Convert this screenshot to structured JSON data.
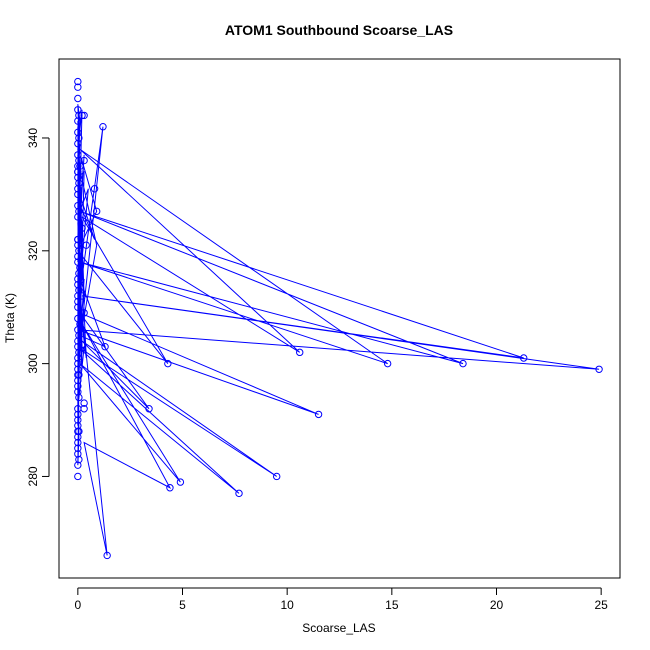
{
  "chart_data": {
    "type": "line",
    "title": "ATOM1 Southbound Scoarse_LAS",
    "xlabel": "Scoarse_LAS",
    "ylabel": "Theta (K)",
    "xlim": [
      -0.9,
      25.9
    ],
    "ylim": [
      262,
      354
    ],
    "xticks": [
      0,
      5,
      10,
      15,
      20,
      25
    ],
    "yticks": [
      280,
      300,
      320,
      340
    ],
    "grid": false,
    "legend": "none",
    "series_color": "#0000ff",
    "series": [
      {
        "x": [
          0.0,
          0.3,
          0.0,
          0.2,
          0.0,
          0.1,
          0.0,
          0.8,
          0.0,
          0.05,
          0.0,
          0.2,
          0.0,
          1.2,
          0.0,
          0.15,
          0.0,
          0.5,
          0.0,
          0.05,
          0.0,
          0.3,
          0.0,
          0.1,
          0.0,
          0.05,
          0.0,
          0.05,
          0.0,
          0.05,
          0.0,
          0.1,
          0.0,
          0.05,
          0.0,
          0.05,
          0.0,
          0.05,
          0.0,
          0.3,
          0.0,
          0.9,
          0.0,
          0.2,
          0.0,
          0.1,
          0.0,
          0.05,
          0.0,
          0.2,
          0.0,
          0.1,
          0.0,
          0.05,
          0.0,
          0.4,
          0.0,
          0.05,
          0.0,
          0.05,
          0.0,
          0.2,
          0.0,
          0.05,
          0.0,
          0.1,
          0.0,
          0.05,
          0.0,
          0.05,
          0.0,
          0.1,
          0.0,
          0.2,
          0.0,
          0.05,
          0.0,
          0.3,
          0.0,
          0.4,
          0.0,
          0.2,
          0.0,
          0.1,
          0.0,
          0.05,
          0.0,
          0.0,
          0.05,
          0.0,
          0.3,
          0.0,
          0.2,
          0.0,
          0.0,
          0.1,
          0.0,
          0.2,
          0.0,
          0.05,
          0.0,
          0.1,
          0.0,
          0.05,
          0.0
        ],
        "y": [
          289,
          334,
          333,
          320,
          346,
          343,
          331,
          322,
          329,
          344,
          335,
          299,
          310,
          342,
          300,
          306,
          326,
          331,
          310,
          330,
          322,
          337,
          318,
          319,
          341,
          337,
          330,
          332,
          306,
          298,
          342,
          328,
          337,
          323,
          330,
          319,
          302,
          290,
          292,
          303,
          302,
          321,
          336,
          303,
          312,
          322,
          337,
          317,
          301,
          325,
          329,
          305,
          312,
          328,
          304,
          302,
          313,
          287,
          282,
          298,
          306,
          302,
          316,
          303,
          311,
          316,
          328,
          302,
          306,
          333,
          334,
          319,
          314,
          316,
          312,
          304,
          297,
          315,
          313,
          301,
          334,
          320,
          331,
          339,
          333,
          315,
          289,
          296,
          340,
          343,
          312,
          338,
          345,
          315,
          307,
          319,
          325,
          306,
          302,
          310,
          299,
          314,
          299,
          307,
          307
        ],
        "values_note_excluded": false
      },
      {
        "x": [
          0.2,
          0.9,
          0.0,
          4.3,
          0.2,
          10.6,
          0.1,
          14.8,
          0.1,
          18.4,
          0.1,
          21.3,
          0.2,
          24.9,
          0.0,
          11.5,
          0.1,
          3.4,
          0.2,
          9.5,
          0.0,
          7.7,
          0.1,
          4.9,
          0.2,
          4.4,
          0.3,
          1.4,
          0.0,
          1.3,
          0.1,
          0.3
        ],
        "y": [
          336,
          327,
          320,
          300,
          326,
          302,
          338,
          300,
          318,
          300,
          327,
          301,
          312,
          299,
          306,
          291,
          309,
          292,
          304,
          280,
          303,
          277,
          300,
          279,
          307,
          278,
          286,
          266,
          316,
          303,
          305,
          309
        ]
      }
    ],
    "points": {
      "x": [
        0.0,
        0.0,
        0.0,
        0.0,
        0.0,
        0.05,
        0.0,
        0.05,
        0.0,
        0.3,
        0.2,
        0.0,
        0.05,
        0.0,
        0.1,
        0.0,
        1.2,
        0.0,
        0.05,
        0.0,
        0.3,
        0.0,
        0.0,
        0.05,
        0.0,
        0.2,
        0.0,
        0.8,
        0.9,
        0.0,
        0.05,
        0.0,
        0.4,
        0.0,
        0.1,
        0.05,
        0.0,
        0.0,
        0.05,
        0.2,
        0.0,
        0.0,
        0.0,
        0.1,
        0.0,
        0.05,
        0.0,
        0.3,
        0.0,
        0.05,
        0.0,
        0.0,
        0.0,
        0.05,
        0.0,
        0.3,
        0.0,
        0.0,
        0.05,
        0.0,
        0.0,
        0.0,
        0.05,
        0.0,
        0.0,
        0.0,
        0.3,
        0.0,
        0.0,
        0.0,
        0.0,
        0.05,
        0.0,
        0.0,
        0.0,
        0.0,
        0.0,
        4.3,
        10.6,
        14.8,
        18.4,
        21.3,
        24.9,
        11.5,
        3.4,
        9.5,
        7.7,
        4.9,
        4.4,
        1.4,
        1.3
      ],
      "y": [
        350,
        349,
        347,
        345,
        343,
        344,
        341,
        340,
        339,
        344,
        344,
        337,
        336,
        335,
        335,
        334,
        342,
        333,
        332,
        331,
        336,
        330,
        328,
        327,
        326,
        324,
        322,
        331,
        327,
        321,
        320,
        319,
        321,
        318,
        317,
        316,
        315,
        314,
        313,
        312,
        311,
        310,
        308,
        307,
        306,
        305,
        304,
        309,
        303,
        302,
        301,
        300,
        299,
        298,
        297,
        293,
        296,
        295,
        294,
        292,
        291,
        289,
        288,
        288,
        287,
        280,
        292,
        286,
        285,
        284,
        290,
        283,
        282,
        298,
        312,
        322,
        334,
        300,
        302,
        300,
        300,
        301,
        299,
        291,
        292,
        280,
        277,
        279,
        278,
        266,
        303
      ]
    }
  }
}
